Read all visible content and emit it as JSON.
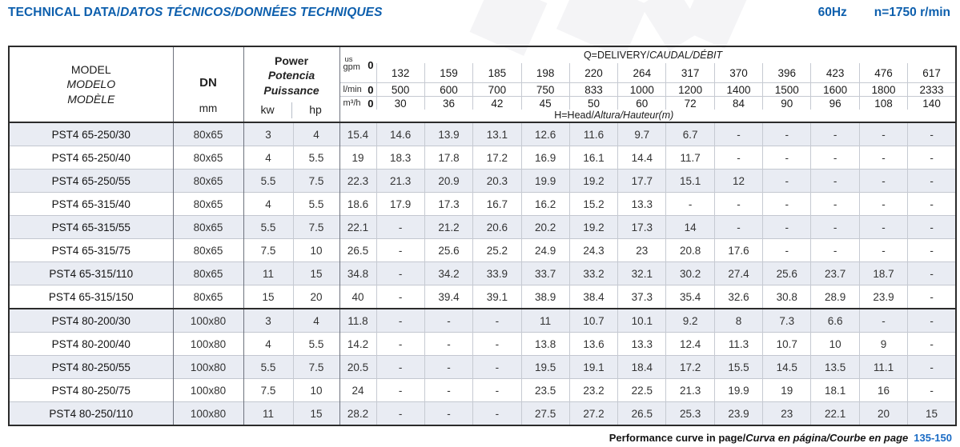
{
  "header": {
    "title_plain": "TECHNICAL DATA/",
    "title_italic": "DATOS TÉCNICOS/DONNÉES TECHNIQUES",
    "frequency": "60Hz",
    "speed": "n=1750 r/min"
  },
  "colors": {
    "accent_blue": "#0d5fad",
    "pages_blue": "#1a6bc4",
    "row_alt": "#e9ecf3",
    "grid_light": "#c6cad2",
    "grid_dark": "#6e737e",
    "frame_dark": "#2b2b2b"
  },
  "table": {
    "model_header": [
      "MODEL",
      "MODELO",
      "MODÈLE"
    ],
    "dn_label": "DN",
    "dn_unit": "mm",
    "power_header": [
      "Power",
      "Potencia",
      "Puissance"
    ],
    "power_units": [
      "kw",
      "hp"
    ],
    "delivery_header_plain": "Q=DELIVERY/",
    "delivery_header_italic": "CAUDAL/DÉBIT",
    "head_header_plain": "H=Head/",
    "head_header_italic": "Altura/Hauteur",
    "head_header_suffix": "(m)",
    "delivery": {
      "gpm": {
        "label_top": "us",
        "label": "gpm",
        "zero": "0",
        "values": [
          "132",
          "159",
          "185",
          "198",
          "220",
          "264",
          "317",
          "370",
          "396",
          "423",
          "476",
          "617"
        ]
      },
      "lmin": {
        "label": "l/min",
        "zero": "0",
        "values": [
          "500",
          "600",
          "700",
          "750",
          "833",
          "1000",
          "1200",
          "1400",
          "1500",
          "1600",
          "1800",
          "2333"
        ]
      },
      "m3h": {
        "label": "m³/h",
        "zero": "0",
        "values": [
          "30",
          "36",
          "42",
          "45",
          "50",
          "60",
          "72",
          "84",
          "90",
          "96",
          "108",
          "140"
        ]
      }
    },
    "rows": [
      {
        "model": "PST4 65-250/30",
        "dn": "80x65",
        "kw": "3",
        "hp": "4",
        "heads": [
          "15.4",
          "14.6",
          "13.9",
          "13.1",
          "12.6",
          "11.6",
          "9.7",
          "6.7",
          "-",
          "-",
          "-",
          "-",
          "-"
        ]
      },
      {
        "model": "PST4 65-250/40",
        "dn": "80x65",
        "kw": "4",
        "hp": "5.5",
        "heads": [
          "19",
          "18.3",
          "17.8",
          "17.2",
          "16.9",
          "16.1",
          "14.4",
          "11.7",
          "-",
          "-",
          "-",
          "-",
          "-"
        ]
      },
      {
        "model": "PST4 65-250/55",
        "dn": "80x65",
        "kw": "5.5",
        "hp": "7.5",
        "heads": [
          "22.3",
          "21.3",
          "20.9",
          "20.3",
          "19.9",
          "19.2",
          "17.7",
          "15.1",
          "12",
          "-",
          "-",
          "-",
          "-"
        ]
      },
      {
        "model": "PST4 65-315/40",
        "dn": "80x65",
        "kw": "4",
        "hp": "5.5",
        "heads": [
          "18.6",
          "17.9",
          "17.3",
          "16.7",
          "16.2",
          "15.2",
          "13.3",
          "-",
          "-",
          "-",
          "-",
          "-",
          "-"
        ]
      },
      {
        "model": "PST4 65-315/55",
        "dn": "80x65",
        "kw": "5.5",
        "hp": "7.5",
        "heads": [
          "22.1",
          "-",
          "21.2",
          "20.6",
          "20.2",
          "19.2",
          "17.3",
          "14",
          "-",
          "-",
          "-",
          "-",
          "-"
        ]
      },
      {
        "model": "PST4 65-315/75",
        "dn": "80x65",
        "kw": "7.5",
        "hp": "10",
        "heads": [
          "26.5",
          "-",
          "25.6",
          "25.2",
          "24.9",
          "24.3",
          "23",
          "20.8",
          "17.6",
          "-",
          "-",
          "-",
          "-"
        ]
      },
      {
        "model": "PST4 65-315/110",
        "dn": "80x65",
        "kw": "11",
        "hp": "15",
        "heads": [
          "34.8",
          "-",
          "34.2",
          "33.9",
          "33.7",
          "33.2",
          "32.1",
          "30.2",
          "27.4",
          "25.6",
          "23.7",
          "18.7",
          "-"
        ]
      },
      {
        "model": "PST4 65-315/150",
        "dn": "80x65",
        "kw": "15",
        "hp": "20",
        "heads": [
          "40",
          "-",
          "39.4",
          "39.1",
          "38.9",
          "38.4",
          "37.3",
          "35.4",
          "32.6",
          "30.8",
          "28.9",
          "23.9",
          "-"
        ]
      },
      {
        "model": "PST4 80-200/30",
        "dn": "100x80",
        "kw": "3",
        "hp": "4",
        "group_start": true,
        "heads": [
          "11.8",
          "-",
          "-",
          "-",
          "11",
          "10.7",
          "10.1",
          "9.2",
          "8",
          "7.3",
          "6.6",
          "-",
          "-"
        ]
      },
      {
        "model": "PST4 80-200/40",
        "dn": "100x80",
        "kw": "4",
        "hp": "5.5",
        "heads": [
          "14.2",
          "-",
          "-",
          "-",
          "13.8",
          "13.6",
          "13.3",
          "12.4",
          "11.3",
          "10.7",
          "10",
          "9",
          "-"
        ]
      },
      {
        "model": "PST4 80-250/55",
        "dn": "100x80",
        "kw": "5.5",
        "hp": "7.5",
        "heads": [
          "20.5",
          "-",
          "-",
          "-",
          "19.5",
          "19.1",
          "18.4",
          "17.2",
          "15.5",
          "14.5",
          "13.5",
          "11.1",
          "-"
        ]
      },
      {
        "model": "PST4 80-250/75",
        "dn": "100x80",
        "kw": "7.5",
        "hp": "10",
        "heads": [
          "24",
          "-",
          "-",
          "-",
          "23.5",
          "23.2",
          "22.5",
          "21.3",
          "19.9",
          "19",
          "18.1",
          "16",
          "-"
        ]
      },
      {
        "model": "PST4 80-250/110",
        "dn": "100x80",
        "kw": "11",
        "hp": "15",
        "heads": [
          "28.2",
          "-",
          "-",
          "-",
          "27.5",
          "27.2",
          "26.5",
          "25.3",
          "23.9",
          "23",
          "22.1",
          "20",
          "15"
        ]
      }
    ]
  },
  "footer": {
    "text_plain": "Performance curve in page/",
    "text_italic": "Curva en página/Courbe en page",
    "pages": "135-150"
  }
}
